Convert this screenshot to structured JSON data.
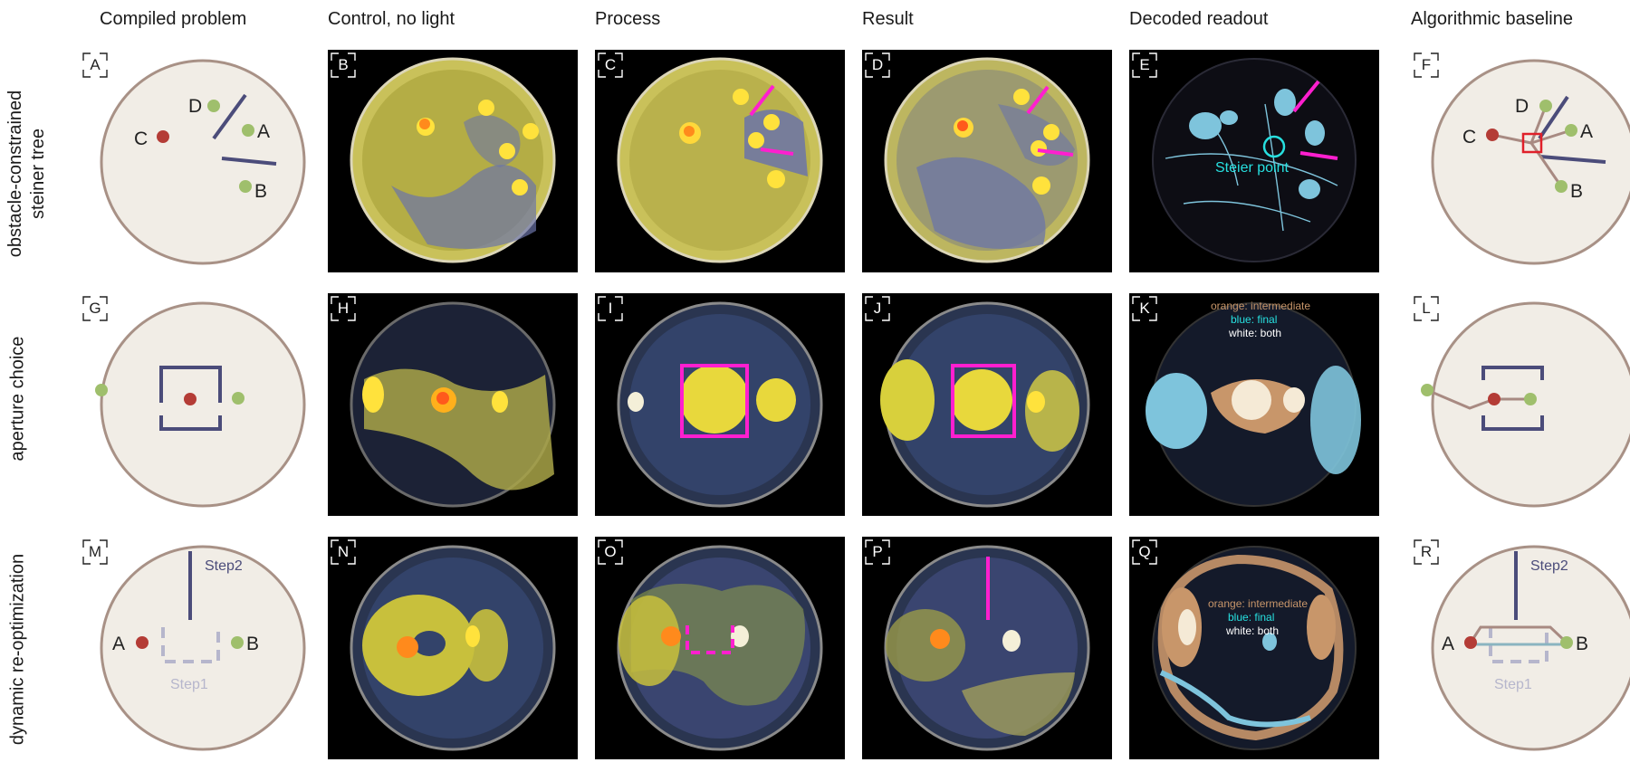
{
  "columns": [
    "Compiled problem",
    "Control, no light",
    "Process",
    "Result",
    "Decoded readout",
    "Algorithmic baseline"
  ],
  "rows": [
    {
      "label_line1": "obstacle-constrained",
      "label_line2": "steiner tree"
    },
    {
      "label_line1": "aperture choice",
      "label_line2": ""
    },
    {
      "label_line1": "dynamic re-optimization",
      "label_line2": ""
    }
  ],
  "panels": [
    "A",
    "B",
    "C",
    "D",
    "E",
    "F",
    "G",
    "H",
    "I",
    "J",
    "K",
    "L",
    "M",
    "N",
    "O",
    "P",
    "Q",
    "R"
  ],
  "schematic_labels": {
    "a_c": "C",
    "a_d": "D",
    "a_a": "A",
    "a_b": "B",
    "f_c": "C",
    "f_d": "D",
    "f_a": "A",
    "f_b": "B",
    "m_a": "A",
    "m_b": "B",
    "m_step2": "Step2",
    "m_step1": "Step1",
    "r_a": "A",
    "r_b": "B",
    "r_step2": "Step2",
    "r_step1": "Step1"
  },
  "readout": {
    "steiner_point": "Steier point",
    "k_orange": "orange: intermediate",
    "k_blue": "blue: final",
    "k_white": "white: both",
    "q_orange": "orange: intermediate",
    "q_blue": "blue: final",
    "q_white": "white: both"
  },
  "colors": {
    "dish_fill": "#f1ede6",
    "dish_rim": "#a89186",
    "obstacle": "#4b4c7a",
    "green_node": "#9fbf6c",
    "red_node": "#b43c36",
    "magenta": "#ff1fcf",
    "cyan": "#27e0e0",
    "readout_blue": "#7ec4dc",
    "readout_orange": "#c8966a",
    "path_brown": "#a88a82",
    "step1_gray": "#b6b6cc"
  }
}
